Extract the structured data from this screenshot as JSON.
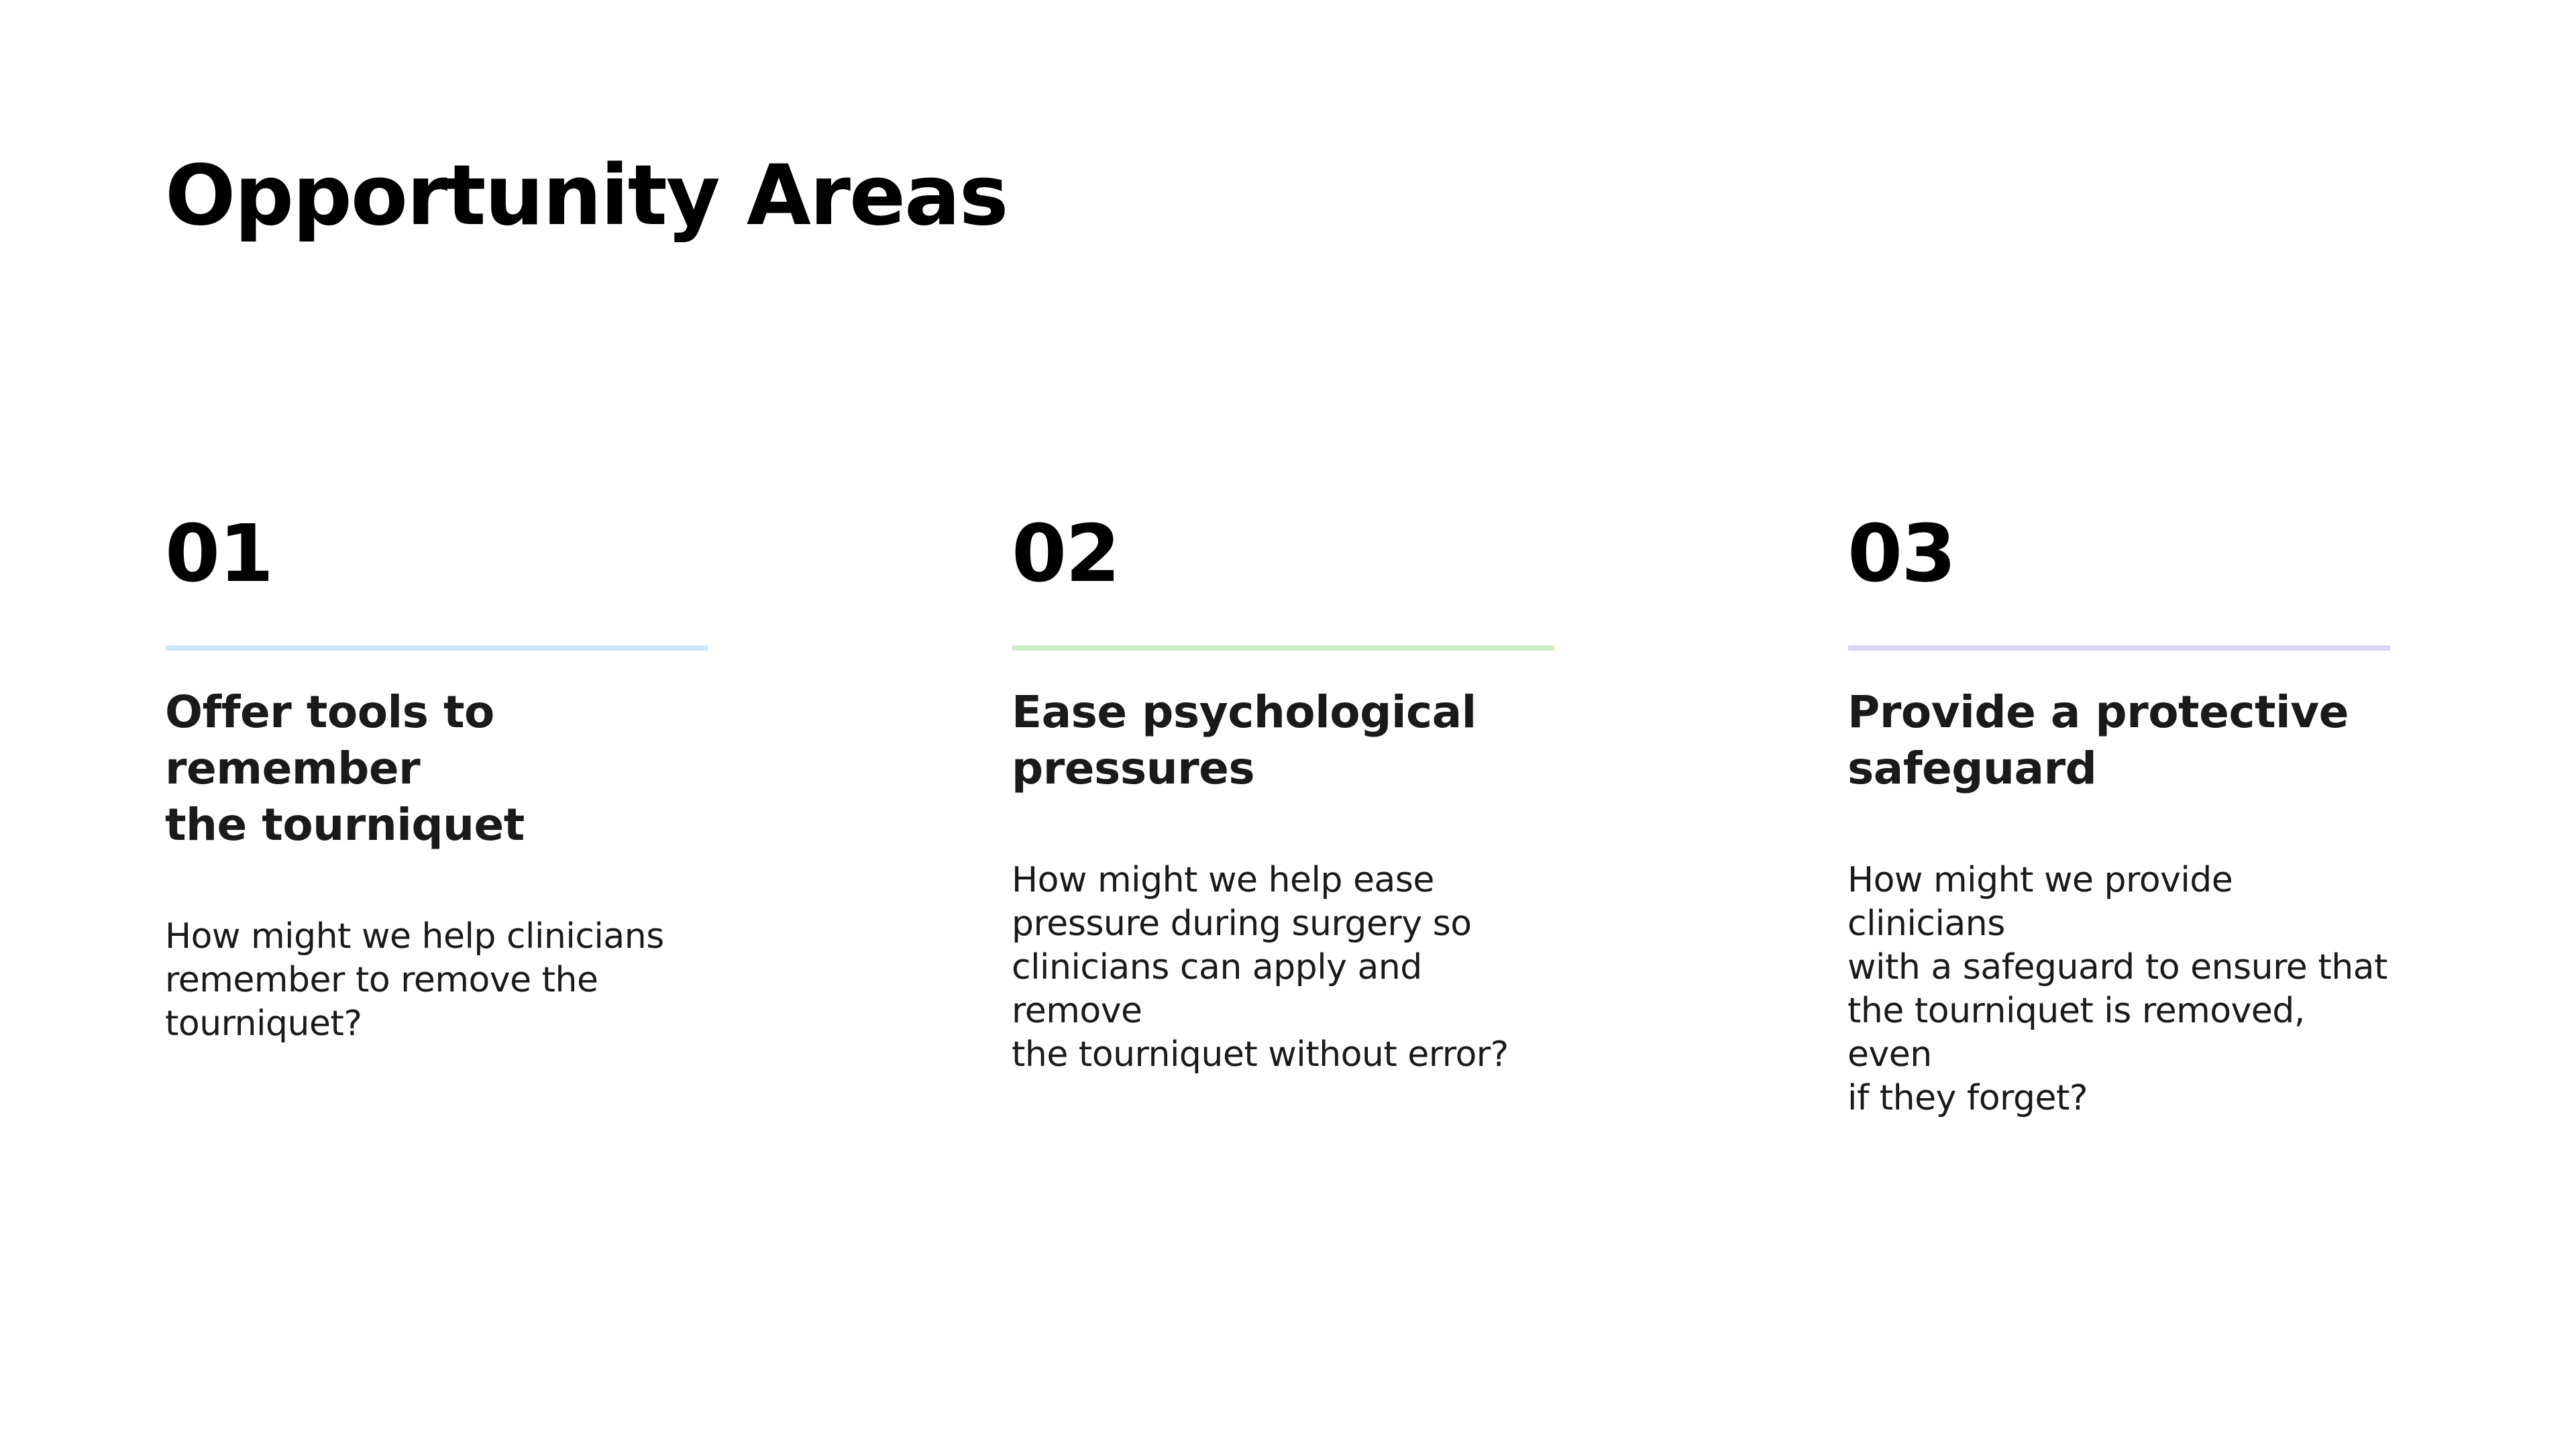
{
  "slide": {
    "title": "Opportunity Areas"
  },
  "cards": [
    {
      "number": "01",
      "accent_color": "#cfe6f5",
      "heading_line1": "Offer tools to remember",
      "heading_line2": "the tourniquet",
      "body_lines": [
        "How might we help clinicians",
        "remember to remove the",
        "tourniquet?"
      ]
    },
    {
      "number": "02",
      "accent_color": "#cdeec3",
      "heading_line1": "Ease psychological",
      "heading_line2": "pressures",
      "body_lines": [
        "How might we help ease",
        "pressure during surgery so",
        "clinicians can apply and remove",
        "the tourniquet without error?"
      ]
    },
    {
      "number": "03",
      "accent_color": "#dad6f3",
      "heading_line1": "Provide a protective",
      "heading_line2": "safeguard",
      "body_lines": [
        "How might we provide clinicians",
        "with a safeguard to ensure that",
        "the tourniquet is removed, even",
        "if they forget?"
      ]
    }
  ]
}
